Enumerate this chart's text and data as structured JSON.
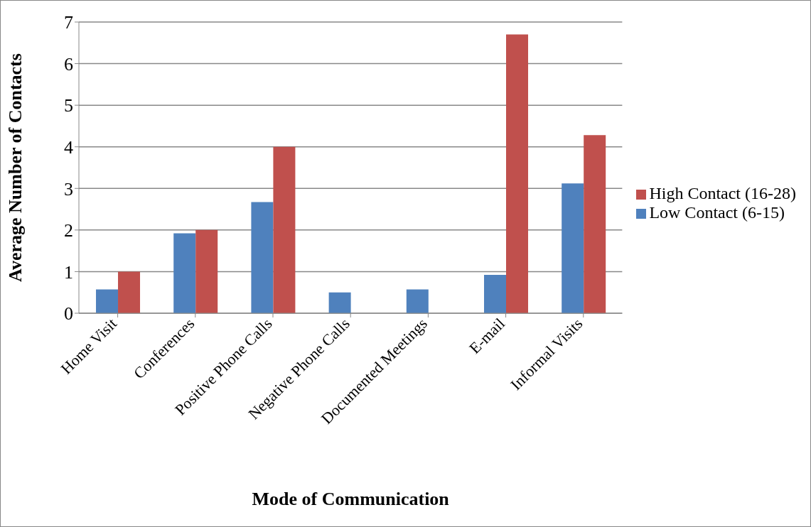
{
  "chart_data": {
    "type": "bar",
    "xlabel": "Mode of Communication",
    "ylabel": "Average Number of Contacts",
    "categories": [
      "Home Visit",
      "Conferences",
      "Positive Phone Calls",
      "Negative Phone Calls",
      "Documented Meetings",
      "E-mail",
      "Informal Visits"
    ],
    "series": [
      {
        "name": "Low Contact (6-15)",
        "color": "#4f81bd",
        "values": [
          0.57,
          1.92,
          2.67,
          0.5,
          0.57,
          0.92,
          3.12
        ]
      },
      {
        "name": "High Contact (16-28)",
        "color": "#c0504d",
        "values": [
          1,
          2,
          4,
          0,
          0,
          6.7,
          4.28
        ]
      }
    ],
    "ylim": [
      0,
      7
    ],
    "yticks": [
      0,
      1,
      2,
      3,
      4,
      5,
      6,
      7
    ],
    "grid": "y",
    "legend": "right"
  }
}
